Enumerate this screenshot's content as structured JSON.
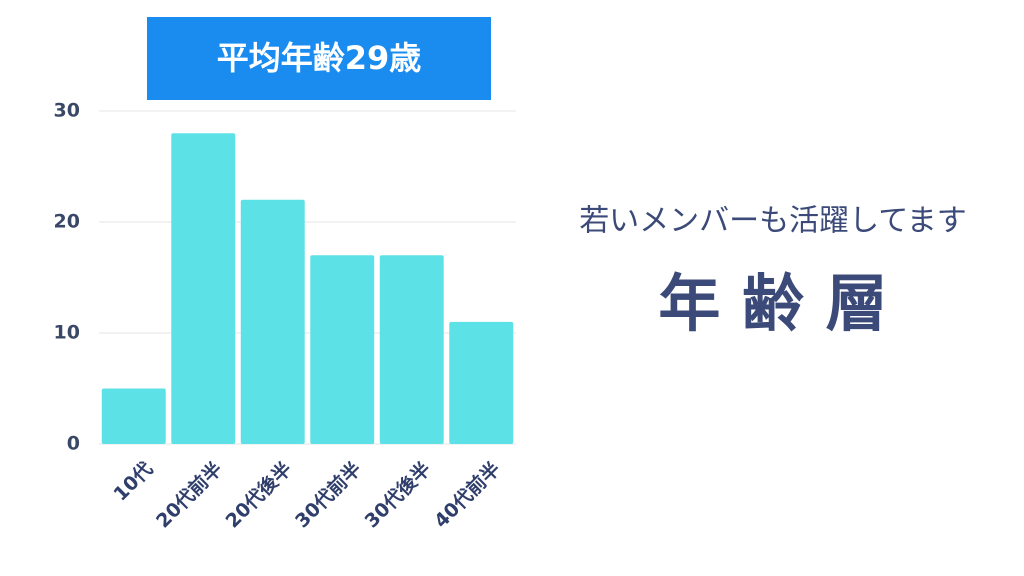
{
  "chart_data": {
    "type": "bar",
    "title": "平均年齢29歳",
    "categories": [
      "10代",
      "20代前半",
      "20代後半",
      "30代前半",
      "30代後半",
      "40代前半"
    ],
    "values": [
      5,
      28,
      22,
      17,
      17,
      11
    ],
    "color": "#5ce1e6",
    "ylim": [
      0,
      30
    ],
    "yticks": [
      0,
      10,
      20,
      30
    ],
    "grid": true,
    "annotations": [
      "若いメンバーも活躍してます",
      "年 齢 層"
    ]
  }
}
